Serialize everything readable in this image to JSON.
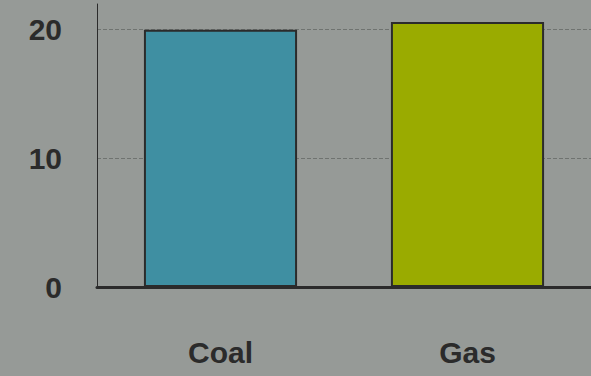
{
  "chart_data": {
    "type": "bar",
    "categories": [
      "Coal",
      "Gas"
    ],
    "values": [
      20,
      20.6
    ],
    "colors": [
      "#3f8fa2",
      "#9aab00"
    ],
    "ylim": [
      0,
      22
    ],
    "yticks": [
      0,
      10,
      20
    ],
    "grid": true
  }
}
